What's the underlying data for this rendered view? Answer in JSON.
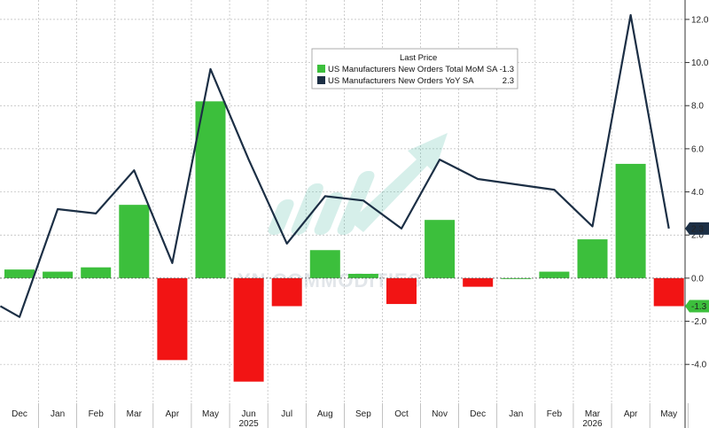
{
  "chart_data": {
    "type": "bar",
    "categories": [
      "Dec",
      "Jan",
      "Feb",
      "Mar",
      "Apr",
      "May",
      "Jun",
      "Jul",
      "Aug",
      "Sep",
      "Oct",
      "Nov",
      "Dec",
      "Jan",
      "Feb",
      "Mar",
      "Apr",
      "May"
    ],
    "year_labels": [
      {
        "label": "2025",
        "index": 6
      },
      {
        "label": "2026",
        "index": 15
      }
    ],
    "series": [
      {
        "name": "US Manufacturers New Orders Total MoM SA",
        "kind": "bar",
        "last": "-1.3",
        "values": [
          0.4,
          0.3,
          0.5,
          3.4,
          -3.8,
          8.2,
          -4.8,
          -1.3,
          1.3,
          0.2,
          -1.2,
          2.7,
          -0.4,
          0.0,
          0.3,
          1.8,
          5.3,
          -1.3
        ]
      },
      {
        "name": "US Manufacturers New Orders YoY SA",
        "kind": "line",
        "last": "2.3",
        "x": [
          -0.5,
          0,
          1,
          2,
          3,
          4,
          5,
          6,
          7,
          8,
          9,
          10,
          11,
          12,
          14,
          15,
          16,
          17
        ],
        "values": [
          -1.3,
          -1.8,
          3.2,
          3.0,
          5.0,
          0.7,
          9.7,
          5.5,
          1.6,
          3.8,
          3.6,
          2.3,
          5.5,
          4.6,
          4.1,
          2.4,
          12.2,
          2.3
        ]
      }
    ],
    "ylim": [
      -5.8,
      12.9
    ],
    "yticks": [
      -4,
      -2,
      0,
      2,
      4,
      6,
      8,
      10,
      12
    ],
    "ytick_labels": [
      "-4.0",
      "-2.0",
      "0.0",
      "2.0",
      "4.0",
      "6.0",
      "8.0",
      "10.0",
      "12.0"
    ],
    "legend": {
      "title": "Last Price",
      "placement": "top-center"
    },
    "colors": {
      "positive": "#3cbf3c",
      "negative": "#f21414",
      "line": "#1c2f45",
      "grid": "#b8b8b8",
      "badge_bg": "#1c2f45",
      "badge_text": "#ffffff"
    },
    "watermark": "YN COMMODITIES",
    "grid": true
  }
}
